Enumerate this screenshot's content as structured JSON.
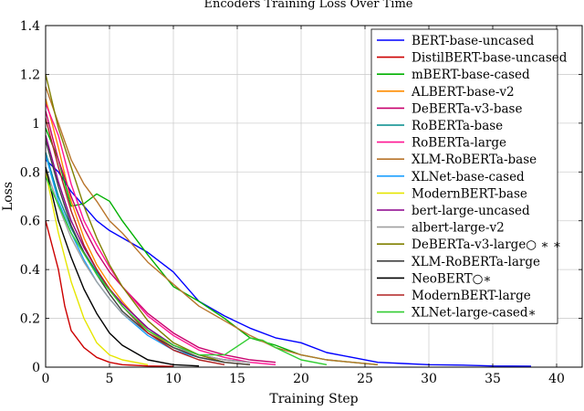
{
  "chart_data": {
    "type": "line",
    "title": "Encoders Training Loss Over Time",
    "xlabel": "Training Step",
    "ylabel": "Loss",
    "xlim": [
      0,
      42
    ],
    "ylim": [
      0,
      1.4
    ],
    "xticks": [
      0,
      5,
      10,
      15,
      20,
      25,
      30,
      35,
      40
    ],
    "yticks": [
      0,
      0.2,
      0.4,
      0.6,
      0.8,
      1,
      1.2,
      1.4
    ],
    "xtick_labels": [
      "0",
      "5",
      "10",
      "15",
      "20",
      "25",
      "30",
      "35",
      "40"
    ],
    "ytick_labels": [
      "0",
      "0.2",
      "0.4",
      "0.6",
      "0.8",
      "1",
      "1.2",
      "1.4"
    ],
    "grid": true,
    "legend_position": "top-right",
    "series": [
      {
        "name": "BERT-base-uncased",
        "color": "#0000ff",
        "x": [
          0,
          1,
          2,
          3,
          4,
          5,
          6,
          8,
          10,
          12,
          14,
          16,
          18,
          20,
          22,
          24,
          26,
          28,
          30,
          33,
          35,
          38
        ],
        "y": [
          0.85,
          0.8,
          0.72,
          0.66,
          0.6,
          0.56,
          0.53,
          0.47,
          0.39,
          0.27,
          0.21,
          0.16,
          0.12,
          0.1,
          0.06,
          0.04,
          0.02,
          0.015,
          0.01,
          0.008,
          0.005,
          0.004
        ]
      },
      {
        "name": "DistilBERT-base-uncased",
        "color": "#cc0000",
        "x": [
          0,
          1,
          1.5,
          2,
          3,
          4,
          5,
          6,
          8,
          10
        ],
        "y": [
          0.6,
          0.4,
          0.25,
          0.15,
          0.08,
          0.04,
          0.02,
          0.01,
          0.005,
          0.003
        ]
      },
      {
        "name": "mBERT-base-cased",
        "color": "#00b000",
        "x": [
          0,
          1,
          2,
          3,
          4,
          5,
          6,
          8,
          10,
          12,
          14,
          16,
          18,
          20,
          22,
          24,
          26
        ],
        "y": [
          0.98,
          0.85,
          0.66,
          0.67,
          0.71,
          0.68,
          0.6,
          0.46,
          0.33,
          0.27,
          0.2,
          0.12,
          0.09,
          0.05,
          0.03,
          0.02,
          0.01
        ]
      },
      {
        "name": "ALBERT-base-v2",
        "color": "#ff8c00",
        "x": [
          0,
          1,
          2,
          3,
          4,
          5,
          6,
          8,
          10,
          12,
          14,
          16
        ],
        "y": [
          1.1,
          0.9,
          0.68,
          0.53,
          0.42,
          0.34,
          0.27,
          0.15,
          0.08,
          0.04,
          0.02,
          0.01
        ]
      },
      {
        "name": "DeBERTa-v3-base",
        "color": "#c8006e",
        "x": [
          0,
          1,
          2,
          3,
          4,
          5,
          6,
          8,
          10,
          12,
          14,
          16,
          18
        ],
        "y": [
          1.05,
          0.85,
          0.7,
          0.57,
          0.47,
          0.39,
          0.33,
          0.22,
          0.14,
          0.08,
          0.05,
          0.03,
          0.02
        ]
      },
      {
        "name": "RoBERTa-base",
        "color": "#008b8b",
        "x": [
          0,
          1,
          2,
          3,
          4,
          5,
          6,
          8,
          10,
          12,
          14,
          16
        ],
        "y": [
          0.88,
          0.7,
          0.57,
          0.47,
          0.39,
          0.32,
          0.26,
          0.16,
          0.09,
          0.05,
          0.03,
          0.02
        ]
      },
      {
        "name": "RoBERTa-large",
        "color": "#ff1493",
        "x": [
          0,
          1,
          2,
          3,
          4,
          5,
          6,
          8,
          10,
          12,
          14,
          16,
          18
        ],
        "y": [
          1.08,
          0.95,
          0.75,
          0.6,
          0.5,
          0.41,
          0.33,
          0.21,
          0.13,
          0.07,
          0.04,
          0.02,
          0.01
        ]
      },
      {
        "name": "XLM-RoBERTa-base",
        "color": "#b8742a",
        "x": [
          0,
          1,
          2,
          3,
          4,
          5,
          6,
          8,
          10,
          12,
          14,
          16,
          18,
          20,
          22,
          24,
          26
        ],
        "y": [
          1.15,
          1.0,
          0.85,
          0.75,
          0.68,
          0.6,
          0.55,
          0.43,
          0.34,
          0.25,
          0.19,
          0.13,
          0.08,
          0.05,
          0.03,
          0.02,
          0.01
        ]
      },
      {
        "name": "XLNet-base-cased",
        "color": "#1ea0ff",
        "x": [
          0,
          1,
          2,
          3,
          4,
          5,
          6,
          8,
          10,
          12,
          14
        ],
        "y": [
          0.87,
          0.68,
          0.55,
          0.44,
          0.35,
          0.28,
          0.22,
          0.13,
          0.07,
          0.04,
          0.02
        ]
      },
      {
        "name": "ModernBERT-base",
        "color": "#e6e600",
        "x": [
          0,
          1,
          2,
          3,
          4,
          5,
          6,
          8
        ],
        "y": [
          0.8,
          0.55,
          0.35,
          0.2,
          0.1,
          0.05,
          0.03,
          0.01
        ]
      },
      {
        "name": "bert-large-uncased",
        "color": "#8b008b",
        "x": [
          0,
          1,
          2,
          3,
          4,
          5,
          6,
          8,
          10,
          12,
          14,
          16
        ],
        "y": [
          0.95,
          0.76,
          0.6,
          0.49,
          0.4,
          0.32,
          0.26,
          0.16,
          0.09,
          0.05,
          0.03,
          0.02
        ]
      },
      {
        "name": "albert-large-v2",
        "color": "#a0a0a0",
        "x": [
          0,
          1,
          2,
          3,
          4,
          5,
          6,
          8,
          10,
          12,
          14,
          16
        ],
        "y": [
          0.82,
          0.66,
          0.53,
          0.43,
          0.35,
          0.28,
          0.22,
          0.14,
          0.08,
          0.05,
          0.03,
          0.02
        ]
      },
      {
        "name": "DeBERTa-v3-large○ ∗ ∗",
        "color": "#808000",
        "x": [
          0,
          1,
          2,
          3,
          4,
          5,
          6,
          8,
          10,
          12,
          14
        ],
        "y": [
          1.2,
          0.98,
          0.82,
          0.66,
          0.53,
          0.42,
          0.33,
          0.19,
          0.1,
          0.05,
          0.02
        ]
      },
      {
        "name": "XLM-RoBERTa-large",
        "color": "#404040",
        "x": [
          0,
          1,
          2,
          3,
          4,
          5,
          6,
          8,
          10,
          12,
          14,
          16
        ],
        "y": [
          0.93,
          0.74,
          0.58,
          0.47,
          0.38,
          0.3,
          0.23,
          0.14,
          0.08,
          0.04,
          0.02,
          0.01
        ]
      },
      {
        "name": "NeoBERT○∗",
        "color": "#000000",
        "x": [
          0,
          1,
          2,
          3,
          4,
          5,
          6,
          8,
          10,
          12
        ],
        "y": [
          0.82,
          0.6,
          0.45,
          0.32,
          0.22,
          0.14,
          0.09,
          0.03,
          0.01,
          0.005
        ]
      },
      {
        "name": "ModernBERT-large",
        "color": "#b22222",
        "x": [
          0,
          1,
          2,
          3,
          4,
          5,
          6,
          8,
          10,
          12,
          14
        ],
        "y": [
          1.02,
          0.82,
          0.64,
          0.5,
          0.4,
          0.32,
          0.25,
          0.14,
          0.07,
          0.03,
          0.01
        ]
      },
      {
        "name": "XLNet-large-cased∗",
        "color": "#32cd32",
        "x": [
          0,
          2,
          4,
          6,
          8,
          10,
          12,
          14,
          16,
          17,
          18,
          20,
          22
        ],
        "y": [
          0.78,
          0.55,
          0.38,
          0.25,
          0.15,
          0.09,
          0.05,
          0.05,
          0.12,
          0.11,
          0.08,
          0.03,
          0.01
        ]
      }
    ]
  }
}
